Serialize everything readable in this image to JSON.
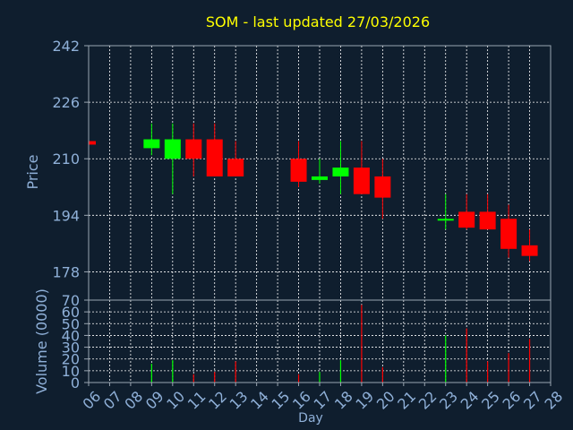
{
  "chart_data": [
    {
      "type": "candlestick",
      "title": "SOM - last updated 27/03/2026",
      "ylabel": "Price",
      "ylim": [
        170,
        242
      ],
      "yticks": [
        178,
        194,
        210,
        226,
        242
      ],
      "categories": [
        "06",
        "07",
        "08",
        "09",
        "10",
        "11",
        "12",
        "13",
        "14",
        "15",
        "16",
        "17",
        "18",
        "19",
        "20",
        "21",
        "22",
        "23",
        "24",
        "25",
        "26",
        "27",
        "28"
      ],
      "candles": [
        {
          "day": "06",
          "open": 215,
          "close": 214,
          "high": 215,
          "low": 214
        },
        {
          "day": "09",
          "open": 213,
          "close": 215.5,
          "high": 220,
          "low": 211
        },
        {
          "day": "10",
          "open": 210,
          "close": 215.5,
          "high": 220,
          "low": 200
        },
        {
          "day": "11",
          "open": 215.5,
          "close": 210,
          "high": 220,
          "low": 205
        },
        {
          "day": "12",
          "open": 215.5,
          "close": 205,
          "high": 220,
          "low": 205
        },
        {
          "day": "13",
          "open": 210,
          "close": 205,
          "high": 215,
          "low": 205
        },
        {
          "day": "16",
          "open": 210,
          "close": 203.5,
          "high": 215,
          "low": 202
        },
        {
          "day": "17",
          "open": 204,
          "close": 205,
          "high": 210,
          "low": 203
        },
        {
          "day": "18",
          "open": 205,
          "close": 207.5,
          "high": 215,
          "low": 200
        },
        {
          "day": "19",
          "open": 207.5,
          "close": 200,
          "high": 215,
          "low": 200
        },
        {
          "day": "20",
          "open": 205,
          "close": 199,
          "high": 210,
          "low": 193
        },
        {
          "day": "23",
          "open": 192.5,
          "close": 193,
          "high": 200,
          "low": 190
        },
        {
          "day": "24",
          "open": 195,
          "close": 190.5,
          "high": 200,
          "low": 190
        },
        {
          "day": "25",
          "open": 195,
          "close": 190,
          "high": 200,
          "low": 190
        },
        {
          "day": "26",
          "open": 193,
          "close": 184.5,
          "high": 197,
          "low": 182
        },
        {
          "day": "27",
          "open": 185.5,
          "close": 182.5,
          "high": 190,
          "low": 181
        }
      ],
      "colors": {
        "up": "#00ff00",
        "down": "#ff0000"
      }
    },
    {
      "type": "bar",
      "ylabel": "Volume (0000)",
      "xlabel": "Day",
      "ylim": [
        0,
        70
      ],
      "yticks": [
        0,
        10,
        20,
        30,
        40,
        50,
        60,
        70
      ],
      "bars": [
        {
          "day": "09",
          "value": 16,
          "dir": "up"
        },
        {
          "day": "10",
          "value": 19,
          "dir": "up"
        },
        {
          "day": "11",
          "value": 7,
          "dir": "down"
        },
        {
          "day": "12",
          "value": 9,
          "dir": "down"
        },
        {
          "day": "13",
          "value": 18,
          "dir": "down"
        },
        {
          "day": "16",
          "value": 7,
          "dir": "down"
        },
        {
          "day": "17",
          "value": 9,
          "dir": "up"
        },
        {
          "day": "18",
          "value": 19,
          "dir": "up"
        },
        {
          "day": "19",
          "value": 66,
          "dir": "down"
        },
        {
          "day": "20",
          "value": 13,
          "dir": "down"
        },
        {
          "day": "23",
          "value": 40,
          "dir": "up"
        },
        {
          "day": "24",
          "value": 46,
          "dir": "down"
        },
        {
          "day": "25",
          "value": 18,
          "dir": "down"
        },
        {
          "day": "26",
          "value": 25,
          "dir": "down"
        },
        {
          "day": "27",
          "value": 37,
          "dir": "down"
        }
      ]
    }
  ],
  "colors": {
    "background": "#0f1e2e",
    "text": "#8fb0d8",
    "title": "#ffff00",
    "grid": "#ffffff",
    "axis": "#9aa5b1"
  }
}
